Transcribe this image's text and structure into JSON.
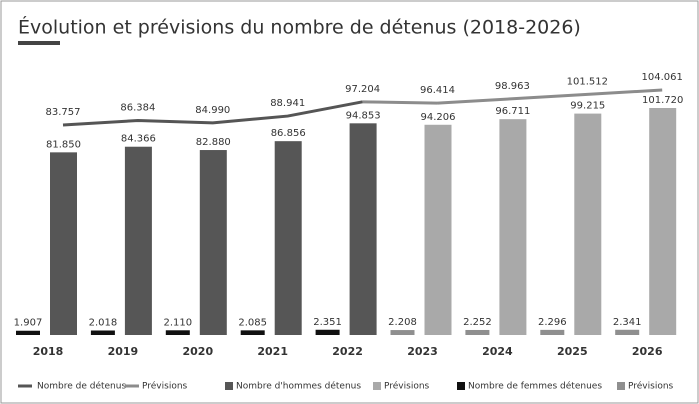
{
  "chart_data": {
    "type": "bar-line",
    "title": "Évolution et prévisions du nombre de détenus (2018-2026)",
    "categories": [
      "2018",
      "2019",
      "2020",
      "2021",
      "2022",
      "2023",
      "2024",
      "2025",
      "2026"
    ],
    "series": [
      {
        "name": "Nombre de détenus",
        "kind": "line",
        "color": "#555555",
        "values": [
          83757,
          86384,
          84990,
          88941,
          97204,
          null,
          null,
          null,
          null
        ],
        "value_labels": [
          "83.757",
          "86.384",
          "84.990",
          "88.941",
          "97.204",
          null,
          null,
          null,
          null
        ]
      },
      {
        "name": "Prévisions",
        "kind": "line",
        "color": "#8c8c8c",
        "values": [
          null,
          null,
          null,
          null,
          null,
          96414,
          98963,
          101512,
          104061
        ],
        "value_labels": [
          null,
          null,
          null,
          null,
          null,
          "96.414",
          "98.963",
          "101.512",
          "104.061"
        ]
      },
      {
        "name": "Nombre d'hommes détenus",
        "kind": "men",
        "color": "#565656",
        "values": [
          81850,
          84366,
          82880,
          86856,
          94853,
          null,
          null,
          null,
          null
        ],
        "value_labels": [
          "81.850",
          "84.366",
          "82.880",
          "86.856",
          "94.853",
          null,
          null,
          null,
          null
        ]
      },
      {
        "name": "Prévisions",
        "kind": "men",
        "color": "#a9a9a9",
        "values": [
          null,
          null,
          null,
          null,
          null,
          94206,
          96711,
          99215,
          101720
        ],
        "value_labels": [
          null,
          null,
          null,
          null,
          null,
          "94.206",
          "96.711",
          "99.215",
          "101.720"
        ]
      },
      {
        "name": "Nombre de femmes détenues",
        "kind": "women",
        "color": "#111111",
        "values": [
          1907,
          2018,
          2110,
          2085,
          2351,
          null,
          null,
          null,
          null
        ],
        "value_labels": [
          "1.907",
          "2.018",
          "2.110",
          "2.085",
          "2.351",
          null,
          null,
          null,
          null
        ]
      },
      {
        "name": "Prévisions",
        "kind": "women",
        "color": "#8f8f8f",
        "values": [
          null,
          null,
          null,
          null,
          null,
          2208,
          2252,
          2296,
          2341
        ],
        "value_labels": [
          null,
          null,
          null,
          null,
          null,
          "2.208",
          "2.252",
          "2.296",
          "2.341"
        ]
      }
    ]
  }
}
